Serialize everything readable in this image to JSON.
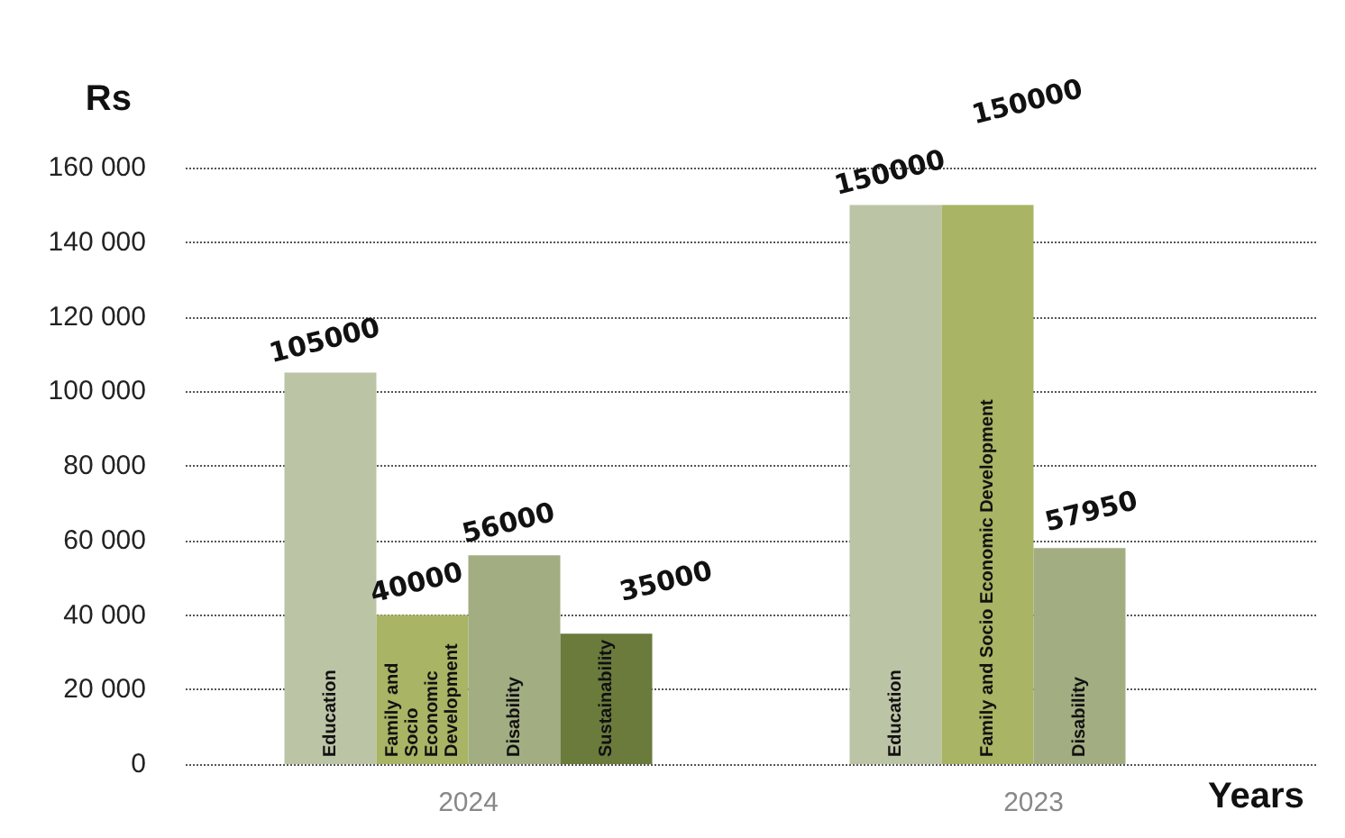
{
  "chart_data": {
    "type": "bar",
    "categories": [
      "2024",
      "2023"
    ],
    "ylabel": "Rs",
    "xlabel": "Years",
    "series": [
      {
        "name": "Education",
        "color": "#bcc4a6",
        "values": [
          105000,
          150000
        ]
      },
      {
        "name": "Family and Socio Economic Development",
        "color": "#a9b464",
        "values": [
          40000,
          150000
        ]
      },
      {
        "name": "Disability",
        "color": "#a2ad82",
        "values": [
          56000,
          57950
        ]
      },
      {
        "name": "Sustainability",
        "color": "#6a7b3c",
        "values": [
          35000,
          null
        ]
      }
    ],
    "ylim": [
      0,
      160000
    ],
    "yticks": [
      {
        "value": 0,
        "label": "0"
      },
      {
        "value": 20000,
        "label": "20 000"
      },
      {
        "value": 40000,
        "label": "40 000"
      },
      {
        "value": 60000,
        "label": "60 000"
      },
      {
        "value": 80000,
        "label": "80 000"
      },
      {
        "value": 100000,
        "label": "100 000"
      },
      {
        "value": 120000,
        "label": "120 000"
      },
      {
        "value": 140000,
        "label": "140 000"
      },
      {
        "value": 160000,
        "label": "160 000"
      }
    ],
    "grid": "y",
    "data_labels": true,
    "legend": false
  }
}
